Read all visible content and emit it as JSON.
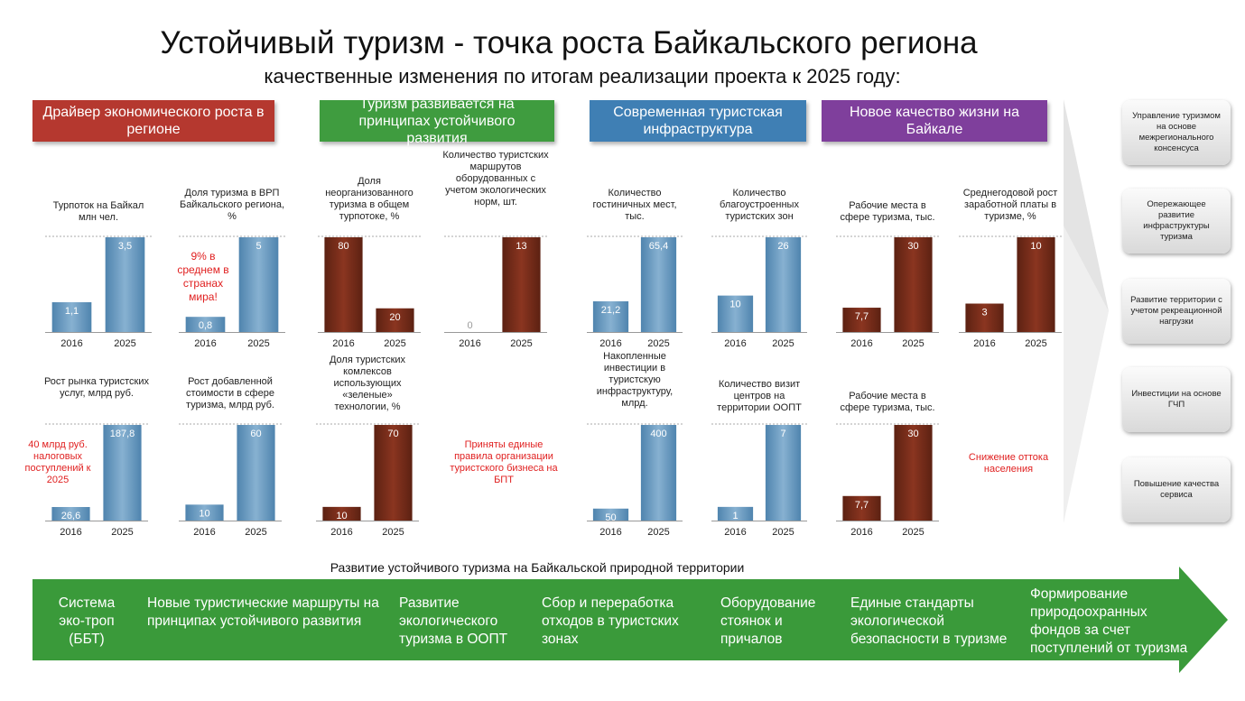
{
  "title": "Устойчивый туризм - точка роста Байкальского региона",
  "subtitle": "качественные изменения по итогам реализации проекта к 2025 году:",
  "categories": [
    {
      "label": "Драйвер экономического роста в регионе",
      "color": "#b5382f"
    },
    {
      "label": "Туризм развивается на принципах устойчивого развития",
      "color": "#3f9c3f"
    },
    {
      "label": "Современная туристская инфраструктура",
      "color": "#3f7fb4"
    },
    {
      "label": "Новое качество жизни на Байкале",
      "color": "#7f3f9c"
    }
  ],
  "colors": {
    "blue_bar": "#6e9cc0",
    "brown_bar": "#7a2e1c",
    "note_red": "#e02020",
    "arrow_green": "#3a9a3a"
  },
  "chart_data": [
    {
      "type": "bar",
      "title": "Турпоток на Байкал млн чел.",
      "categories": [
        "2016",
        "2025"
      ],
      "values": [
        1.1,
        3.5
      ],
      "value_labels": [
        "1,1",
        "3,5"
      ],
      "style": "blue"
    },
    {
      "type": "bar",
      "title": "Доля туризма в ВРП Байкальского региона, %",
      "categories": [
        "2016",
        "2025"
      ],
      "values": [
        0.8,
        5
      ],
      "value_labels": [
        "0,8",
        "5"
      ],
      "style": "blue"
    },
    {
      "type": "bar",
      "title": "Доля неорганизованного туризма в общем турпотоке, %",
      "categories": [
        "2016",
        "2025"
      ],
      "values": [
        80,
        20
      ],
      "value_labels": [
        "80",
        "20"
      ],
      "style": "brown"
    },
    {
      "type": "bar",
      "title": "Количество туристских маршрутов оборудованных с учетом экологических норм, шт.",
      "categories": [
        "2016",
        "2025"
      ],
      "values": [
        0,
        13
      ],
      "value_labels": [
        "0",
        "13"
      ],
      "style": "brown"
    },
    {
      "type": "bar",
      "title": "Количество гостиничных мест, тыс.",
      "categories": [
        "2016",
        "2025"
      ],
      "values": [
        21.2,
        65.4
      ],
      "value_labels": [
        "21,2",
        "65,4"
      ],
      "style": "blue"
    },
    {
      "type": "bar",
      "title": "Количество благоустроенных туристских зон",
      "categories": [
        "2016",
        "2025"
      ],
      "values": [
        10,
        26
      ],
      "value_labels": [
        "10",
        "26"
      ],
      "style": "blue"
    },
    {
      "type": "bar",
      "title": "Рабочие места в сфере туризма, тыс.",
      "categories": [
        "2016",
        "2025"
      ],
      "values": [
        7.7,
        30
      ],
      "value_labels": [
        "7,7",
        "30"
      ],
      "style": "brown"
    },
    {
      "type": "bar",
      "title": "Среднегодовой рост заработной платы в туризме, %",
      "categories": [
        "2016",
        "2025"
      ],
      "values": [
        3,
        10
      ],
      "value_labels": [
        "3",
        "10"
      ],
      "style": "brown"
    },
    {
      "type": "bar",
      "title": "Рост рынка туристских услуг, млрд руб.",
      "categories": [
        "2016",
        "2025"
      ],
      "values": [
        26.6,
        187.8
      ],
      "value_labels": [
        "26,6",
        "187,8"
      ],
      "style": "blue"
    },
    {
      "type": "bar",
      "title": "Рост добавленной стоимости в сфере туризма, млрд руб.",
      "categories": [
        "2016",
        "2025"
      ],
      "values": [
        10,
        60
      ],
      "value_labels": [
        "10",
        "60"
      ],
      "style": "blue"
    },
    {
      "type": "bar",
      "title": "Доля туристских комлексов использующих «зеленые» технологии, %",
      "categories": [
        "2016",
        "2025"
      ],
      "values": [
        10,
        70
      ],
      "value_labels": [
        "10",
        "70"
      ],
      "style": "brown"
    },
    {
      "type": "bar",
      "title": "Накопленные инвестиции в туристскую инфраструктуру, млрд.",
      "categories": [
        "2016",
        "2025"
      ],
      "values": [
        50,
        400
      ],
      "value_labels": [
        "50",
        "400"
      ],
      "style": "blue"
    },
    {
      "type": "bar",
      "title": "Количество визит центров на территории ООПТ",
      "categories": [
        "2016",
        "2025"
      ],
      "values": [
        1,
        7
      ],
      "value_labels": [
        "1",
        "7"
      ],
      "style": "blue"
    },
    {
      "type": "bar",
      "title": "Рабочие места в сфере туризма, тыс.",
      "categories": [
        "2016",
        "2025"
      ],
      "values": [
        7.7,
        30
      ],
      "value_labels": [
        "7,7",
        "30"
      ],
      "style": "brown"
    }
  ],
  "notes": [
    "9% в среднем в странах мира!",
    "40 млрд руб. налоговых поступлений к 2025",
    "Приняты единые правила организации туристского бизнеса на БПТ",
    "Снижение оттока населения"
  ],
  "side_boxes": [
    "Управление туризмом на основе межрегионального консенсуса",
    "Опережающее развитие инфраструктуры туризма",
    "Развитие территории с учетом рекреационной нагрузки",
    "Инвестиции на основе ГЧП",
    "Повышение качества сервиса"
  ],
  "bottom_caption": "Развитие устойчивого туризма на Байкальской природной территории",
  "stages": [
    "Система эко-троп (ББТ)",
    "Новые туристические маршруты на принципах устойчивого развития",
    "Развитие экологического туризма в ООПТ",
    "Сбор и переработка отходов в туристских зонах",
    "Оборудование стоянок и причалов",
    "Единые стандарты экологической безопасности в туризме",
    "Формирование природоохранных фондов за счет поступлений от туризма"
  ]
}
